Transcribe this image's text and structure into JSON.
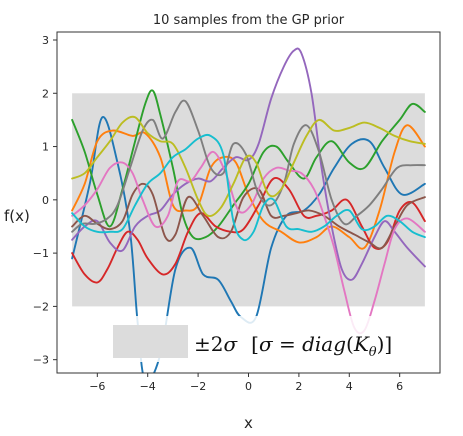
{
  "chart_data": {
    "type": "line",
    "title": "10 samples from the GP prior",
    "xlabel": "x",
    "ylabel": "f(x)",
    "xlim": [
      -7.6,
      7.6
    ],
    "ylim": [
      -3.25,
      3.15
    ],
    "xticks": [
      -6,
      -4,
      -2,
      0,
      2,
      4,
      6
    ],
    "yticks": [
      -3,
      -2,
      -1,
      0,
      1,
      2,
      3
    ],
    "band": {
      "x": [
        -7,
        7
      ],
      "y": [
        -2,
        2
      ],
      "color": "#dcdcdc"
    },
    "legend": {
      "position": "lower-right",
      "label": "±2σ  [σ = diag(K_θ)]",
      "label_parts": {
        "pm": "±2",
        "sigma": "σ",
        "open": "[",
        "eq": " = ",
        "diag": "diag",
        "K": "K",
        "theta": "θ",
        "close": ")]"
      }
    },
    "series": [
      {
        "color": "#1f77b4",
        "points": [
          [
            -7,
            -1.1
          ],
          [
            -6.3,
            0.3
          ],
          [
            -5.8,
            1.55
          ],
          [
            -5.2,
            0.7
          ],
          [
            -4.7,
            -0.6
          ],
          [
            -4.4,
            -2.3
          ],
          [
            -4.1,
            -3.4
          ],
          [
            -3.5,
            -2.9
          ],
          [
            -2.9,
            -1.3
          ],
          [
            -2.3,
            -0.9
          ],
          [
            -1.8,
            -1.4
          ],
          [
            -1.2,
            -1.5
          ],
          [
            -0.7,
            -1.9
          ],
          [
            -0.3,
            -2.2
          ],
          [
            0.3,
            -2.2
          ],
          [
            0.9,
            -0.9
          ],
          [
            1.5,
            -0.3
          ],
          [
            2.2,
            -0.2
          ],
          [
            2.8,
            0.1
          ],
          [
            3.4,
            0.6
          ],
          [
            4.1,
            1.05
          ],
          [
            4.8,
            1.1
          ],
          [
            5.4,
            0.6
          ],
          [
            6.1,
            0.1
          ],
          [
            7,
            0.3
          ]
        ]
      },
      {
        "color": "#ff7f0e",
        "points": [
          [
            -7,
            -0.2
          ],
          [
            -6.5,
            0.3
          ],
          [
            -6,
            1.1
          ],
          [
            -5.4,
            1.3
          ],
          [
            -4.6,
            1.2
          ],
          [
            -4.1,
            1.25
          ],
          [
            -3.5,
            0.8
          ],
          [
            -3,
            -0.1
          ],
          [
            -2.5,
            -0.2
          ],
          [
            -2,
            -0.1
          ],
          [
            -1.5,
            0.6
          ],
          [
            -1,
            0.8
          ],
          [
            -0.5,
            0.7
          ],
          [
            0,
            0.1
          ],
          [
            0.6,
            -0.4
          ],
          [
            1.3,
            -0.6
          ],
          [
            2,
            -0.8
          ],
          [
            2.7,
            -0.7
          ],
          [
            3.3,
            -0.5
          ],
          [
            4,
            -0.7
          ],
          [
            4.6,
            -0.9
          ],
          [
            5.2,
            -0.2
          ],
          [
            5.8,
            0.9
          ],
          [
            6.3,
            1.4
          ],
          [
            7,
            1.0
          ]
        ]
      },
      {
        "color": "#2ca02c",
        "points": [
          [
            -7,
            1.5
          ],
          [
            -6.5,
            0.9
          ],
          [
            -6,
            0.1
          ],
          [
            -5.5,
            -0.5
          ],
          [
            -5,
            0.2
          ],
          [
            -4.5,
            1.1
          ],
          [
            -4.1,
            1.8
          ],
          [
            -3.8,
            2.05
          ],
          [
            -3.5,
            1.6
          ],
          [
            -3,
            0.6
          ],
          [
            -2.6,
            -0.3
          ],
          [
            -2.2,
            -0.7
          ],
          [
            -1.7,
            -0.7
          ],
          [
            -1.2,
            -0.5
          ],
          [
            -0.6,
            -0.1
          ],
          [
            0,
            0.3
          ],
          [
            0.6,
            0.9
          ],
          [
            1.1,
            1.0
          ],
          [
            1.6,
            0.7
          ],
          [
            2.2,
            0.4
          ],
          [
            2.7,
            0.8
          ],
          [
            3.3,
            1.1
          ],
          [
            4,
            0.7
          ],
          [
            4.6,
            0.6
          ],
          [
            5.3,
            1.1
          ],
          [
            6,
            1.5
          ],
          [
            6.5,
            1.8
          ],
          [
            7,
            1.65
          ]
        ]
      },
      {
        "color": "#d62728",
        "points": [
          [
            -7,
            -1.0
          ],
          [
            -6.5,
            -1.4
          ],
          [
            -6,
            -1.55
          ],
          [
            -5.6,
            -1.3
          ],
          [
            -5.2,
            -0.9
          ],
          [
            -4.8,
            -0.6
          ],
          [
            -4.4,
            -0.75
          ],
          [
            -4,
            -1.1
          ],
          [
            -3.4,
            -1.4
          ],
          [
            -2.9,
            -1.2
          ],
          [
            -2.4,
            -0.6
          ],
          [
            -1.9,
            -0.25
          ],
          [
            -1.3,
            -0.5
          ],
          [
            -0.7,
            -0.6
          ],
          [
            -0.2,
            -0.55
          ],
          [
            0.4,
            -0.1
          ],
          [
            1,
            0.4
          ],
          [
            1.6,
            0.2
          ],
          [
            2.2,
            -0.3
          ],
          [
            2.7,
            -0.3
          ],
          [
            3.3,
            -0.2
          ],
          [
            3.9,
            0.0
          ],
          [
            4.5,
            -0.5
          ],
          [
            5,
            -0.9
          ],
          [
            5.5,
            -0.8
          ],
          [
            6,
            -0.2
          ],
          [
            6.5,
            -0.05
          ],
          [
            7,
            -0.4
          ]
        ]
      },
      {
        "color": "#9467bd",
        "points": [
          [
            -7,
            -0.75
          ],
          [
            -6.5,
            -0.5
          ],
          [
            -6,
            -0.4
          ],
          [
            -5.5,
            -0.8
          ],
          [
            -5,
            -0.95
          ],
          [
            -4.5,
            -0.5
          ],
          [
            -4,
            -0.3
          ],
          [
            -3.5,
            -0.2
          ],
          [
            -3,
            0.1
          ],
          [
            -2.5,
            0.3
          ],
          [
            -2,
            0.4
          ],
          [
            -1.5,
            0.35
          ],
          [
            -1,
            0.6
          ],
          [
            -0.5,
            0.8
          ],
          [
            0,
            0.75
          ],
          [
            0.4,
            1.05
          ],
          [
            0.9,
            1.9
          ],
          [
            1.4,
            2.5
          ],
          [
            1.8,
            2.8
          ],
          [
            2.1,
            2.75
          ],
          [
            2.5,
            2.0
          ],
          [
            2.9,
            0.6
          ],
          [
            3.3,
            -0.5
          ],
          [
            3.7,
            -1.3
          ],
          [
            4.1,
            -1.5
          ],
          [
            4.5,
            -1.2
          ],
          [
            5,
            -0.7
          ],
          [
            5.4,
            -0.4
          ],
          [
            5.8,
            -0.6
          ],
          [
            6.3,
            -0.9
          ],
          [
            7,
            -1.25
          ]
        ]
      },
      {
        "color": "#8c564b",
        "points": [
          [
            -7,
            -0.5
          ],
          [
            -6.5,
            -0.3
          ],
          [
            -6,
            -0.45
          ],
          [
            -5.5,
            -0.55
          ],
          [
            -5,
            -0.4
          ],
          [
            -4.6,
            0.1
          ],
          [
            -4.2,
            0.3
          ],
          [
            -3.8,
            0.1
          ],
          [
            -3.3,
            -0.7
          ],
          [
            -2.9,
            -0.65
          ],
          [
            -2.4,
            0.05
          ],
          [
            -1.8,
            -0.3
          ],
          [
            -1.2,
            -0.7
          ],
          [
            -0.7,
            -0.6
          ],
          [
            -0.2,
            0.05
          ],
          [
            0.4,
            0.2
          ],
          [
            0.9,
            -0.3
          ],
          [
            1.4,
            -0.3
          ],
          [
            1.9,
            -0.25
          ],
          [
            2.4,
            -0.2
          ],
          [
            3,
            -0.3
          ],
          [
            3.6,
            -0.5
          ],
          [
            4.2,
            -0.65
          ],
          [
            4.8,
            -0.8
          ],
          [
            5.3,
            -0.9
          ],
          [
            5.8,
            -0.5
          ],
          [
            6.3,
            -0.1
          ],
          [
            7,
            0.05
          ]
        ]
      },
      {
        "color": "#e377c2",
        "points": [
          [
            -7,
            -0.3
          ],
          [
            -6.5,
            -0.1
          ],
          [
            -6,
            0.2
          ],
          [
            -5.5,
            0.6
          ],
          [
            -5,
            0.7
          ],
          [
            -4.6,
            0.5
          ],
          [
            -4.2,
            0.0
          ],
          [
            -3.7,
            -0.5
          ],
          [
            -3.2,
            -0.3
          ],
          [
            -2.8,
            0.35
          ],
          [
            -2.3,
            0.35
          ],
          [
            -1.9,
            0.6
          ],
          [
            -1.4,
            0.9
          ],
          [
            -0.9,
            0.5
          ],
          [
            -0.4,
            -0.2
          ],
          [
            0.1,
            -0.1
          ],
          [
            0.6,
            0.4
          ],
          [
            1.1,
            0.6
          ],
          [
            1.6,
            0.55
          ],
          [
            2.1,
            0.5
          ],
          [
            2.6,
            0.2
          ],
          [
            3,
            -0.3
          ],
          [
            3.4,
            -0.9
          ],
          [
            3.8,
            -1.7
          ],
          [
            4.2,
            -2.4
          ],
          [
            4.6,
            -2.45
          ],
          [
            5,
            -1.9
          ],
          [
            5.4,
            -1.2
          ],
          [
            5.8,
            -0.55
          ],
          [
            6.3,
            -0.35
          ],
          [
            7,
            -0.6
          ]
        ]
      },
      {
        "color": "#7f7f7f",
        "points": [
          [
            -7,
            -0.6
          ],
          [
            -6.6,
            -0.45
          ],
          [
            -6.1,
            -0.45
          ],
          [
            -5.6,
            -0.35
          ],
          [
            -5.2,
            -0.1
          ],
          [
            -4.7,
            0.6
          ],
          [
            -4.2,
            1.3
          ],
          [
            -3.8,
            1.5
          ],
          [
            -3.4,
            1.15
          ],
          [
            -2.9,
            1.65
          ],
          [
            -2.5,
            1.85
          ],
          [
            -2,
            1.3
          ],
          [
            -1.5,
            0.6
          ],
          [
            -1,
            0.5
          ],
          [
            -0.6,
            1.05
          ],
          [
            -0.1,
            0.85
          ],
          [
            0.4,
            0.1
          ],
          [
            0.9,
            -0.1
          ],
          [
            1.4,
            0.3
          ],
          [
            1.8,
            1.05
          ],
          [
            2.3,
            1.4
          ],
          [
            2.8,
            0.9
          ],
          [
            3.3,
            0.0
          ],
          [
            3.8,
            -0.45
          ],
          [
            4.3,
            -0.3
          ],
          [
            4.8,
            -0.1
          ],
          [
            5.3,
            0.2
          ],
          [
            5.9,
            0.6
          ],
          [
            6.5,
            0.65
          ],
          [
            7,
            0.65
          ]
        ]
      },
      {
        "color": "#bcbd22",
        "points": [
          [
            -7,
            0.4
          ],
          [
            -6.5,
            0.5
          ],
          [
            -6,
            0.8
          ],
          [
            -5.5,
            1.1
          ],
          [
            -5,
            1.45
          ],
          [
            -4.5,
            1.55
          ],
          [
            -4,
            1.25
          ],
          [
            -3.5,
            1.1
          ],
          [
            -3,
            1.05
          ],
          [
            -2.5,
            0.6
          ],
          [
            -2,
            0.0
          ],
          [
            -1.6,
            -0.3
          ],
          [
            -1.1,
            -0.15
          ],
          [
            -0.6,
            0.3
          ],
          [
            -0.1,
            0.8
          ],
          [
            0.3,
            0.7
          ],
          [
            0.8,
            0.1
          ],
          [
            1.3,
            0.2
          ],
          [
            1.8,
            0.7
          ],
          [
            2.3,
            1.2
          ],
          [
            2.8,
            1.5
          ],
          [
            3.4,
            1.3
          ],
          [
            4,
            1.35
          ],
          [
            4.6,
            1.45
          ],
          [
            5.2,
            1.35
          ],
          [
            5.8,
            1.2
          ],
          [
            6.4,
            1.1
          ],
          [
            7,
            1.05
          ]
        ]
      },
      {
        "color": "#17becf",
        "points": [
          [
            -7,
            -0.25
          ],
          [
            -6.5,
            -0.5
          ],
          [
            -6,
            -0.6
          ],
          [
            -5.5,
            -0.6
          ],
          [
            -5,
            -0.55
          ],
          [
            -4.5,
            -0.1
          ],
          [
            -4,
            0.3
          ],
          [
            -3.5,
            0.5
          ],
          [
            -3,
            0.8
          ],
          [
            -2.5,
            0.95
          ],
          [
            -2,
            1.15
          ],
          [
            -1.5,
            1.2
          ],
          [
            -1,
            0.85
          ],
          [
            -0.6,
            -0.4
          ],
          [
            -0.2,
            -0.75
          ],
          [
            0.2,
            -0.6
          ],
          [
            0.6,
            -0.1
          ],
          [
            1,
            0.0
          ],
          [
            1.5,
            -0.5
          ],
          [
            2,
            -0.55
          ],
          [
            2.5,
            -0.6
          ],
          [
            3,
            -0.5
          ],
          [
            3.5,
            -0.3
          ],
          [
            4,
            -0.2
          ],
          [
            4.5,
            -0.55
          ],
          [
            5,
            -0.5
          ],
          [
            5.5,
            -0.3
          ],
          [
            6,
            -0.4
          ],
          [
            6.5,
            -0.6
          ],
          [
            7,
            -0.7
          ]
        ]
      }
    ]
  }
}
